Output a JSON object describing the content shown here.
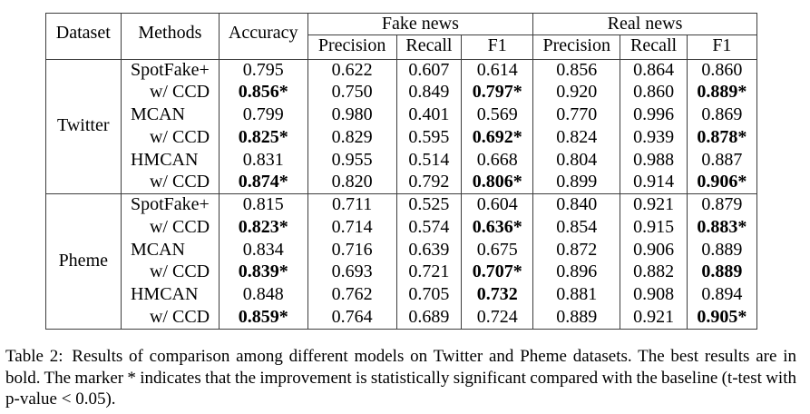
{
  "table": {
    "header": {
      "dataset": "Dataset",
      "methods": "Methods",
      "accuracy": "Accuracy",
      "fake_news": "Fake news",
      "real_news": "Real news",
      "sub": {
        "fake_precision": "Precision",
        "fake_recall": "Recall",
        "fake_f1": "F1",
        "real_precision": "Precision",
        "real_recall": "Recall",
        "real_f1": "F1"
      }
    },
    "groups": [
      {
        "dataset": "Twitter",
        "rows": [
          {
            "method": "SpotFake+",
            "indent": false,
            "cells": [
              {
                "t": "0.795",
                "b": false
              },
              {
                "t": "0.622",
                "b": false
              },
              {
                "t": "0.607",
                "b": false
              },
              {
                "t": "0.614",
                "b": false
              },
              {
                "t": "0.856",
                "b": false
              },
              {
                "t": "0.864",
                "b": false
              },
              {
                "t": "0.860",
                "b": false
              }
            ]
          },
          {
            "method": "w/ CCD",
            "indent": true,
            "cells": [
              {
                "t": "0.856*",
                "b": true
              },
              {
                "t": "0.750",
                "b": false
              },
              {
                "t": "0.849",
                "b": false
              },
              {
                "t": "0.797*",
                "b": true
              },
              {
                "t": "0.920",
                "b": false
              },
              {
                "t": "0.860",
                "b": false
              },
              {
                "t": "0.889*",
                "b": true
              }
            ]
          },
          {
            "method": "MCAN",
            "indent": false,
            "cells": [
              {
                "t": "0.799",
                "b": false
              },
              {
                "t": "0.980",
                "b": false
              },
              {
                "t": "0.401",
                "b": false
              },
              {
                "t": "0.569",
                "b": false
              },
              {
                "t": "0.770",
                "b": false
              },
              {
                "t": "0.996",
                "b": false
              },
              {
                "t": "0.869",
                "b": false
              }
            ]
          },
          {
            "method": "w/ CCD",
            "indent": true,
            "cells": [
              {
                "t": "0.825*",
                "b": true
              },
              {
                "t": "0.829",
                "b": false
              },
              {
                "t": "0.595",
                "b": false
              },
              {
                "t": "0.692*",
                "b": true
              },
              {
                "t": "0.824",
                "b": false
              },
              {
                "t": "0.939",
                "b": false
              },
              {
                "t": "0.878*",
                "b": true
              }
            ]
          },
          {
            "method": "HMCAN",
            "indent": false,
            "cells": [
              {
                "t": "0.831",
                "b": false
              },
              {
                "t": "0.955",
                "b": false
              },
              {
                "t": "0.514",
                "b": false
              },
              {
                "t": "0.668",
                "b": false
              },
              {
                "t": "0.804",
                "b": false
              },
              {
                "t": "0.988",
                "b": false
              },
              {
                "t": "0.887",
                "b": false
              }
            ]
          },
          {
            "method": "w/ CCD",
            "indent": true,
            "cells": [
              {
                "t": "0.874*",
                "b": true
              },
              {
                "t": "0.820",
                "b": false
              },
              {
                "t": "0.792",
                "b": false
              },
              {
                "t": "0.806*",
                "b": true
              },
              {
                "t": "0.899",
                "b": false
              },
              {
                "t": "0.914",
                "b": false
              },
              {
                "t": "0.906*",
                "b": true
              }
            ]
          }
        ]
      },
      {
        "dataset": "Pheme",
        "rows": [
          {
            "method": "SpotFake+",
            "indent": false,
            "cells": [
              {
                "t": "0.815",
                "b": false
              },
              {
                "t": "0.711",
                "b": false
              },
              {
                "t": "0.525",
                "b": false
              },
              {
                "t": "0.604",
                "b": false
              },
              {
                "t": "0.840",
                "b": false
              },
              {
                "t": "0.921",
                "b": false
              },
              {
                "t": "0.879",
                "b": false
              }
            ]
          },
          {
            "method": "w/ CCD",
            "indent": true,
            "cells": [
              {
                "t": "0.823*",
                "b": true
              },
              {
                "t": "0.714",
                "b": false
              },
              {
                "t": "0.574",
                "b": false
              },
              {
                "t": "0.636*",
                "b": true
              },
              {
                "t": "0.854",
                "b": false
              },
              {
                "t": "0.915",
                "b": false
              },
              {
                "t": "0.883*",
                "b": true
              }
            ]
          },
          {
            "method": "MCAN",
            "indent": false,
            "cells": [
              {
                "t": "0.834",
                "b": false
              },
              {
                "t": "0.716",
                "b": false
              },
              {
                "t": "0.639",
                "b": false
              },
              {
                "t": "0.675",
                "b": false
              },
              {
                "t": "0.872",
                "b": false
              },
              {
                "t": "0.906",
                "b": false
              },
              {
                "t": "0.889",
                "b": false
              }
            ]
          },
          {
            "method": "w/ CCD",
            "indent": true,
            "cells": [
              {
                "t": "0.839*",
                "b": true
              },
              {
                "t": "0.693",
                "b": false
              },
              {
                "t": "0.721",
                "b": false
              },
              {
                "t": "0.707*",
                "b": true
              },
              {
                "t": "0.896",
                "b": false
              },
              {
                "t": "0.882",
                "b": false
              },
              {
                "t": "0.889",
                "b": true
              }
            ]
          },
          {
            "method": "HMCAN",
            "indent": false,
            "cells": [
              {
                "t": "0.848",
                "b": false
              },
              {
                "t": "0.762",
                "b": false
              },
              {
                "t": "0.705",
                "b": false
              },
              {
                "t": "0.732",
                "b": true
              },
              {
                "t": "0.881",
                "b": false
              },
              {
                "t": "0.908",
                "b": false
              },
              {
                "t": "0.894",
                "b": false
              }
            ]
          },
          {
            "method": "w/ CCD",
            "indent": true,
            "cells": [
              {
                "t": "0.859*",
                "b": true
              },
              {
                "t": "0.764",
                "b": false
              },
              {
                "t": "0.689",
                "b": false
              },
              {
                "t": "0.724",
                "b": false
              },
              {
                "t": "0.889",
                "b": false
              },
              {
                "t": "0.921",
                "b": false
              },
              {
                "t": "0.905*",
                "b": true
              }
            ]
          }
        ]
      }
    ]
  },
  "caption": {
    "label": "Table 2:",
    "line1": "Results of comparison among different models on Twitter and Pheme datasets. The best results are in",
    "line2": "bold. The marker * indicates that the improvement is statistically significant compared with the baseline (t-test with",
    "line3": "p-value < 0.05)."
  }
}
